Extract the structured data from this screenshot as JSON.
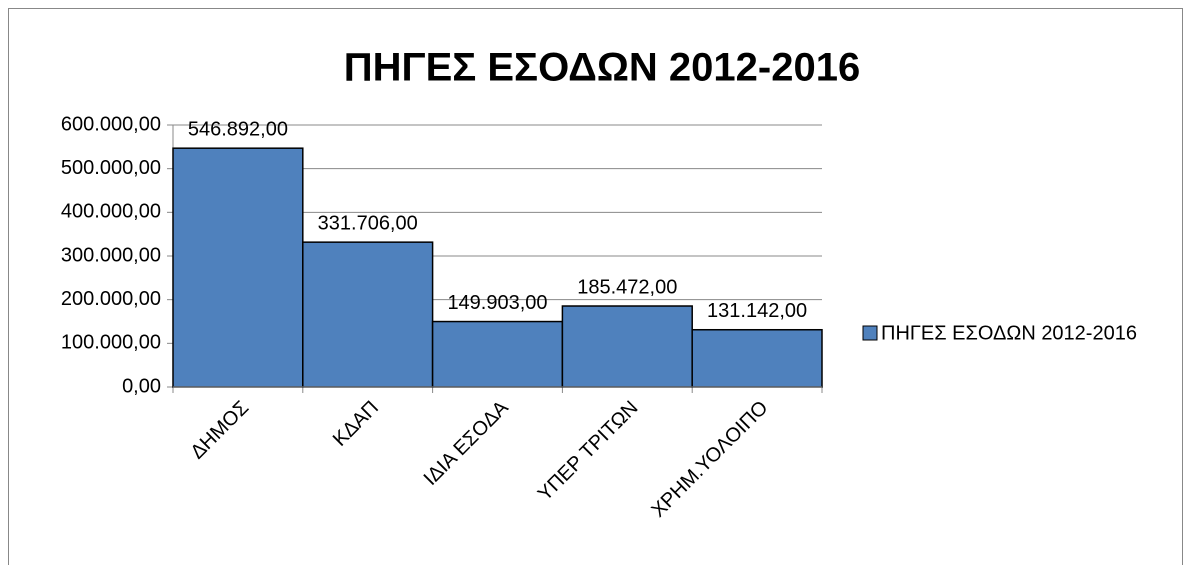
{
  "chart_data": {
    "type": "bar",
    "title": "ΠΗΓΕΣ ΕΣΟΔΩΝ 2012-2016",
    "categories": [
      "ΔΗΜΟΣ",
      "ΚΔΑΠ",
      "ΙΔΙΑ ΕΣΟΔΑ",
      "ΥΠΕΡ ΤΡΙΤΩΝ",
      "ΧΡΗΜ.ΥΟΛΟΙΠΟ"
    ],
    "series": [
      {
        "name": "ΠΗΓΕΣ ΕΣΟΔΩΝ 2012-2016",
        "color": "#4f81bd",
        "values": [
          546892,
          331706,
          149903,
          185472,
          131142
        ],
        "value_labels": [
          "546.892,00",
          "331.706,00",
          "149.903,00",
          "185.472,00",
          "131.142,00"
        ]
      }
    ],
    "ylim": [
      0,
      600000
    ],
    "yticks": [
      {
        "value": 0,
        "label": "0,00"
      },
      {
        "value": 100000,
        "label": "100.000,00"
      },
      {
        "value": 200000,
        "label": "200.000,00"
      },
      {
        "value": 300000,
        "label": "300.000,00"
      },
      {
        "value": 400000,
        "label": "400.000,00"
      },
      {
        "value": 500000,
        "label": "500.000,00"
      },
      {
        "value": 600000,
        "label": "600.000,00"
      }
    ],
    "grid": true,
    "legend": "right"
  }
}
